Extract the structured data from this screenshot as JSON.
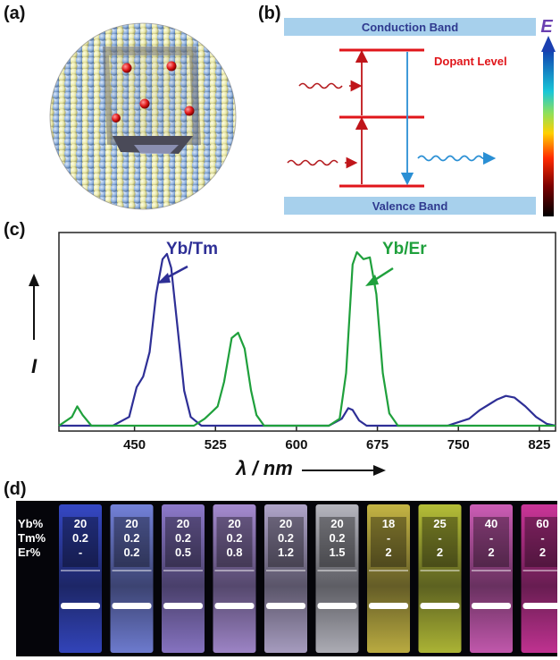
{
  "panels": {
    "a": {
      "label": "(a)"
    },
    "b": {
      "label": "(b)",
      "conduction_band": "Conduction Band",
      "valence_band": "Valence Band",
      "dopant_level": "Dopant Level",
      "energy_symbol": "E"
    },
    "c": {
      "label": "(c)"
    },
    "d": {
      "label": "(d)",
      "row_labels": [
        "Yb%",
        "Tm%",
        "Er%"
      ],
      "samples": [
        {
          "yb": "20",
          "tm": "0.2",
          "er": "-"
        },
        {
          "yb": "20",
          "tm": "0.2",
          "er": "0.2"
        },
        {
          "yb": "20",
          "tm": "0.2",
          "er": "0.5"
        },
        {
          "yb": "20",
          "tm": "0.2",
          "er": "0.8"
        },
        {
          "yb": "20",
          "tm": "0.2",
          "er": "1.2"
        },
        {
          "yb": "20",
          "tm": "0.2",
          "er": "1.5"
        },
        {
          "yb": "18",
          "tm": "-",
          "er": "2"
        },
        {
          "yb": "25",
          "tm": "-",
          "er": "2"
        },
        {
          "yb": "40",
          "tm": "-",
          "er": "2"
        },
        {
          "yb": "60",
          "tm": "-",
          "er": "2"
        }
      ],
      "cuvette_colors": [
        "#3a4fd8",
        "#7f8ff0",
        "#9c86e0",
        "#b79ae6",
        "#c2b6de",
        "#c9c9d2",
        "#d9c84a",
        "#c8d23c",
        "#e266c8",
        "#e03aa8"
      ]
    }
  },
  "chart_data": {
    "type": "line",
    "xlabel": "λ / nm",
    "ylabel": "I",
    "xlim": [
      380,
      840
    ],
    "ylim": [
      0,
      1
    ],
    "x_ticks": [
      450,
      525,
      600,
      675,
      750,
      825
    ],
    "series": [
      {
        "name": "Yb/Tm",
        "color": "#2e2f96",
        "points": [
          [
            380,
            0.0
          ],
          [
            430,
            0.0
          ],
          [
            445,
            0.05
          ],
          [
            452,
            0.22
          ],
          [
            458,
            0.28
          ],
          [
            464,
            0.42
          ],
          [
            470,
            0.75
          ],
          [
            476,
            0.95
          ],
          [
            480,
            0.98
          ],
          [
            484,
            0.9
          ],
          [
            490,
            0.55
          ],
          [
            496,
            0.2
          ],
          [
            502,
            0.05
          ],
          [
            512,
            0.0
          ],
          [
            630,
            0.0
          ],
          [
            642,
            0.04
          ],
          [
            648,
            0.1
          ],
          [
            652,
            0.09
          ],
          [
            658,
            0.03
          ],
          [
            665,
            0.0
          ],
          [
            740,
            0.0
          ],
          [
            760,
            0.04
          ],
          [
            770,
            0.09
          ],
          [
            778,
            0.12
          ],
          [
            786,
            0.15
          ],
          [
            794,
            0.17
          ],
          [
            802,
            0.16
          ],
          [
            812,
            0.11
          ],
          [
            822,
            0.05
          ],
          [
            832,
            0.01
          ],
          [
            840,
            0.0
          ]
        ]
      },
      {
        "name": "Yb/Er",
        "color": "#1fa03c",
        "points": [
          [
            380,
            0.0
          ],
          [
            392,
            0.05
          ],
          [
            397,
            0.11
          ],
          [
            402,
            0.06
          ],
          [
            410,
            0.0
          ],
          [
            505,
            0.0
          ],
          [
            515,
            0.04
          ],
          [
            522,
            0.08
          ],
          [
            527,
            0.11
          ],
          [
            533,
            0.25
          ],
          [
            540,
            0.5
          ],
          [
            546,
            0.53
          ],
          [
            552,
            0.44
          ],
          [
            558,
            0.2
          ],
          [
            563,
            0.06
          ],
          [
            570,
            0.0
          ],
          [
            630,
            0.0
          ],
          [
            640,
            0.04
          ],
          [
            646,
            0.3
          ],
          [
            652,
            0.92
          ],
          [
            656,
            0.99
          ],
          [
            662,
            0.95
          ],
          [
            668,
            0.96
          ],
          [
            674,
            0.75
          ],
          [
            680,
            0.3
          ],
          [
            686,
            0.07
          ],
          [
            694,
            0.0
          ],
          [
            840,
            0.0
          ]
        ]
      }
    ],
    "annotations": [
      "Yb/Tm",
      "Yb/Er"
    ]
  }
}
